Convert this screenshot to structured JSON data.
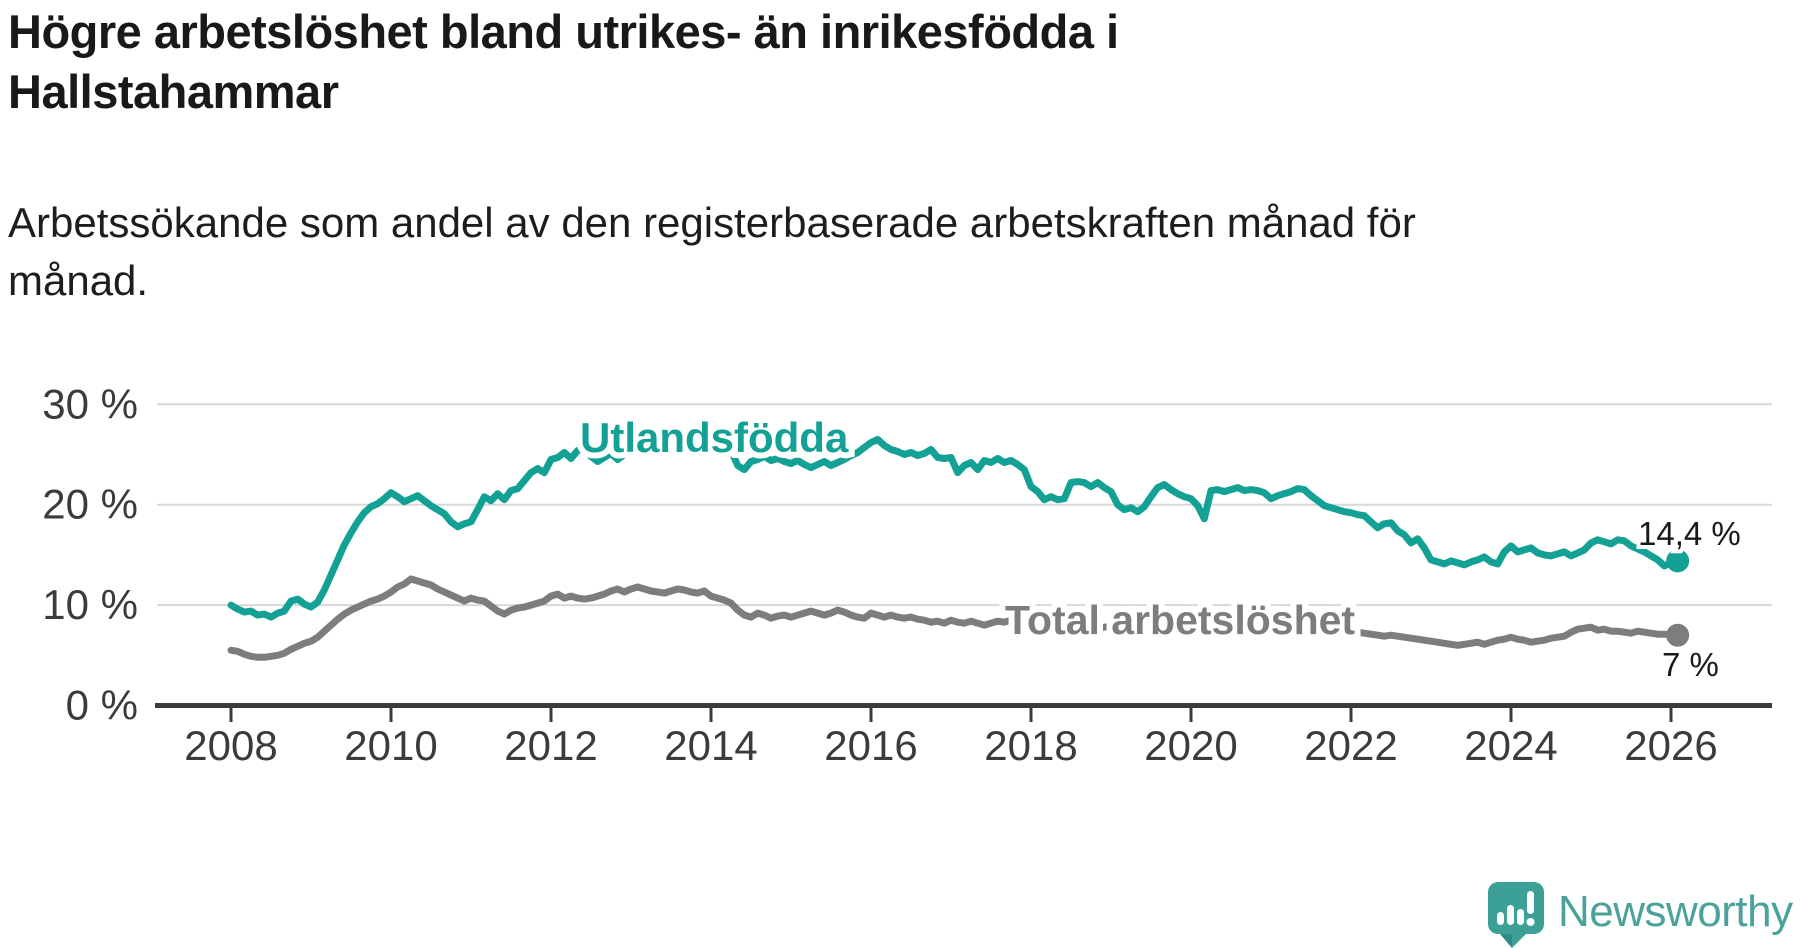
{
  "header": {
    "title": "Högre arbetslöshet bland utrikes- än inrikesfödda i Hallstahammar",
    "subtitle": "Arbetssökande som andel av den registerbaserade arbetskraften månad för månad."
  },
  "branding": {
    "name": "Newsworthy"
  },
  "colors": {
    "foreign_born": "#13a195",
    "total": "#7d7d7d",
    "annotation": "#191919",
    "axis_text": "#3b3b3b",
    "gridline": "#d8d8d8",
    "axis_line": "#3b3b3b",
    "logo_teal": "#4aa29b",
    "logo_bubble": "#3da096",
    "logo_bubble_shade": "#2f8c84"
  },
  "chart_data": {
    "type": "line",
    "title": "Högre arbetslöshet bland utrikes- än inrikesfödda i Hallstahammar",
    "subtitle": "Arbetssökande som andel av den registerbaserade arbetskraften månad för månad.",
    "x_unit": "month",
    "x_start_year": 2008,
    "x_start_month": 1,
    "points_per_year": 12,
    "xlim": [
      2008,
      2026.3
    ],
    "ylim": [
      0,
      32
    ],
    "grid": "horizontal",
    "legend_position": "inline-labels",
    "xtick_labels": [
      "2008",
      "2010",
      "2012",
      "2014",
      "2016",
      "2018",
      "2020",
      "2022",
      "2024",
      "2026"
    ],
    "xtick_years": [
      2008,
      2010,
      2012,
      2014,
      2016,
      2018,
      2020,
      2022,
      2024,
      2026
    ],
    "ytick_labels": [
      "30 %",
      "20 %",
      "10 %",
      "0 %"
    ],
    "ytick_values": [
      30,
      20,
      10,
      0
    ],
    "series": [
      {
        "name": "Utlandsfödda",
        "color": "#13a195",
        "end_label": "14,4 %",
        "end_value": 14.4,
        "values": [
          10.0,
          9.6,
          9.3,
          9.4,
          9.0,
          9.1,
          8.8,
          9.2,
          9.4,
          10.4,
          10.6,
          10.1,
          9.8,
          10.3,
          11.5,
          13.0,
          14.5,
          16.0,
          17.2,
          18.3,
          19.2,
          19.8,
          20.1,
          20.6,
          21.2,
          20.8,
          20.3,
          20.6,
          20.9,
          20.4,
          19.9,
          19.5,
          19.1,
          18.3,
          17.8,
          18.1,
          18.3,
          19.5,
          20.8,
          20.4,
          21.1,
          20.5,
          21.4,
          21.6,
          22.4,
          23.2,
          23.6,
          23.2,
          24.5,
          24.7,
          25.2,
          24.6,
          25.4,
          25.6,
          24.8,
          24.3,
          24.7,
          25.1,
          24.5,
          25.0,
          25.4,
          25.7,
          26.0,
          25.6,
          25.9,
          26.1,
          25.7,
          25.4,
          25.6,
          25.9,
          25.5,
          25.7,
          25.9,
          26.2,
          25.8,
          25.4,
          23.9,
          23.5,
          24.3,
          24.5,
          24.8,
          24.4,
          24.6,
          24.3,
          24.1,
          24.4,
          24.0,
          23.7,
          24.0,
          24.3,
          23.9,
          24.2,
          24.5,
          24.9,
          25.2,
          25.7,
          26.2,
          26.5,
          25.9,
          25.5,
          25.3,
          25.0,
          25.2,
          24.9,
          25.1,
          25.5,
          24.7,
          24.6,
          24.7,
          23.2,
          23.9,
          24.2,
          23.5,
          24.4,
          24.2,
          24.6,
          24.2,
          24.4,
          24.0,
          23.5,
          21.8,
          21.3,
          20.5,
          20.8,
          20.5,
          20.6,
          22.2,
          22.3,
          22.2,
          21.8,
          22.2,
          21.7,
          21.3,
          20.0,
          19.5,
          19.7,
          19.3,
          19.8,
          20.8,
          21.7,
          22.0,
          21.5,
          21.1,
          20.8,
          20.6,
          19.9,
          18.6,
          21.4,
          21.5,
          21.3,
          21.5,
          21.7,
          21.4,
          21.5,
          21.4,
          21.2,
          20.6,
          20.9,
          21.1,
          21.3,
          21.6,
          21.5,
          20.9,
          20.4,
          19.9,
          19.7,
          19.5,
          19.3,
          19.2,
          19.0,
          18.9,
          18.3,
          17.7,
          18.1,
          18.2,
          17.4,
          17.0,
          16.2,
          16.6,
          15.7,
          14.5,
          14.3,
          14.1,
          14.4,
          14.2,
          14.0,
          14.3,
          14.5,
          14.8,
          14.3,
          14.1,
          15.3,
          15.9,
          15.3,
          15.5,
          15.7,
          15.2,
          15.0,
          14.9,
          15.1,
          15.3,
          14.9,
          15.2,
          15.5,
          16.2,
          16.5,
          16.3,
          16.1,
          16.5,
          16.4,
          15.9,
          15.6,
          15.3,
          14.9,
          14.5,
          13.9,
          14.2,
          14.4
        ]
      },
      {
        "name": "Total arbetslöshet",
        "color": "#7d7d7d",
        "end_label": "7 %",
        "end_value": 7.0,
        "values": [
          5.5,
          5.4,
          5.1,
          4.9,
          4.8,
          4.8,
          4.9,
          5.0,
          5.2,
          5.6,
          5.9,
          6.2,
          6.4,
          6.8,
          7.4,
          8.0,
          8.6,
          9.1,
          9.5,
          9.8,
          10.1,
          10.4,
          10.6,
          10.9,
          11.3,
          11.8,
          12.1,
          12.6,
          12.4,
          12.2,
          12.0,
          11.6,
          11.3,
          11.0,
          10.7,
          10.4,
          10.7,
          10.5,
          10.4,
          9.9,
          9.4,
          9.1,
          9.5,
          9.7,
          9.8,
          10.0,
          10.2,
          10.4,
          10.9,
          11.1,
          10.7,
          10.9,
          10.7,
          10.6,
          10.7,
          10.9,
          11.1,
          11.4,
          11.6,
          11.3,
          11.6,
          11.8,
          11.6,
          11.4,
          11.3,
          11.2,
          11.4,
          11.6,
          11.5,
          11.3,
          11.2,
          11.4,
          10.9,
          10.7,
          10.5,
          10.2,
          9.5,
          9.0,
          8.8,
          9.2,
          9.0,
          8.7,
          8.9,
          9.0,
          8.8,
          9.0,
          9.2,
          9.4,
          9.2,
          9.0,
          9.2,
          9.5,
          9.3,
          9.0,
          8.8,
          8.7,
          9.2,
          9.0,
          8.8,
          9.0,
          8.8,
          8.7,
          8.8,
          8.6,
          8.5,
          8.3,
          8.4,
          8.2,
          8.5,
          8.3,
          8.2,
          8.4,
          8.2,
          8.0,
          8.2,
          8.4,
          8.3,
          8.5,
          8.4,
          8.3,
          8.2,
          8.0,
          7.9,
          8.0,
          7.8,
          7.7,
          7.9,
          8.0,
          7.9,
          7.8,
          7.7,
          7.8,
          7.9,
          7.8,
          7.7,
          7.8,
          7.7,
          7.8,
          7.9,
          8.0,
          8.1,
          8.0,
          7.9,
          8.0,
          8.0,
          7.9,
          8.2,
          8.6,
          8.8,
          8.9,
          8.8,
          8.7,
          8.6,
          8.5,
          8.4,
          8.3,
          8.4,
          8.3,
          8.2,
          8.1,
          8.0,
          7.9,
          7.8,
          7.7,
          7.6,
          7.5,
          7.4,
          7.3,
          7.4,
          7.3,
          7.2,
          7.1,
          7.0,
          6.9,
          7.0,
          6.9,
          6.8,
          6.7,
          6.6,
          6.5,
          6.4,
          6.3,
          6.2,
          6.1,
          6.0,
          6.1,
          6.2,
          6.3,
          6.1,
          6.3,
          6.5,
          6.6,
          6.8,
          6.6,
          6.5,
          6.3,
          6.4,
          6.5,
          6.7,
          6.8,
          6.9,
          7.3,
          7.6,
          7.7,
          7.8,
          7.5,
          7.6,
          7.4,
          7.4,
          7.3,
          7.2,
          7.4,
          7.3,
          7.2,
          7.1,
          7.1,
          7.0,
          7.0
        ]
      }
    ]
  }
}
